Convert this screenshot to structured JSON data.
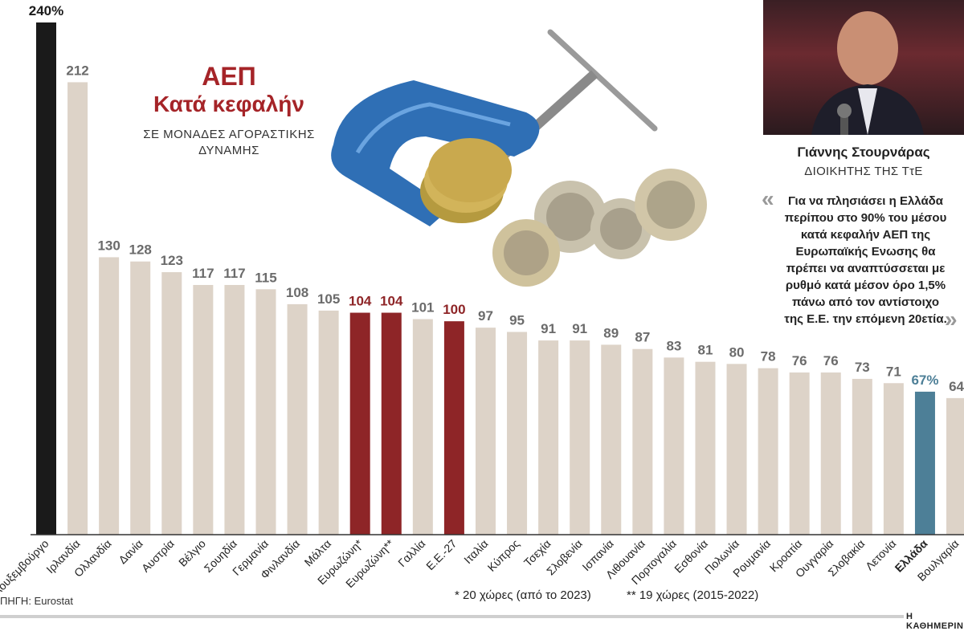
{
  "chart_data": {
    "type": "bar",
    "title": "ΑΕΠ",
    "subtitle": "Κατά κεφαλήν",
    "units": "ΣΕ ΜΟΝΑΔΕΣ ΑΓΟΡΑΣΤΙΚΗΣ ΔΥΝΑΜΗΣ",
    "categories": [
      "Λουξεμβούργο",
      "Ιρλανδία",
      "Ολλανδία",
      "Δανία",
      "Αυστρία",
      "Βέλγιο",
      "Σουηδία",
      "Γερμανία",
      "Φινλανδία",
      "Μάλτα",
      "Ευρωζώνη*",
      "Ευρωζώνη**",
      "Γαλλία",
      "Ε.Ε.-27",
      "Ιταλία",
      "Κύπρος",
      "Τσεχία",
      "Σλοβενία",
      "Ισπανία",
      "Λιθουανία",
      "Πορτογαλία",
      "Εσθονία",
      "Πολωνία",
      "Ρουμανία",
      "Κροατία",
      "Ουγγαρία",
      "Σλοβακία",
      "Λετονία",
      "Ελλάδα",
      "Βουλγαρία"
    ],
    "values": [
      240,
      212,
      130,
      128,
      123,
      117,
      117,
      115,
      108,
      105,
      104,
      104,
      101,
      100,
      97,
      95,
      91,
      91,
      89,
      87,
      83,
      81,
      80,
      78,
      76,
      76,
      73,
      71,
      67,
      64
    ],
    "value_labels": [
      "240%",
      "212",
      "130",
      "128",
      "123",
      "117",
      "117",
      "115",
      "108",
      "105",
      "104",
      "104",
      "101",
      "100",
      "97",
      "95",
      "91",
      "91",
      "89",
      "87",
      "83",
      "81",
      "80",
      "78",
      "76",
      "76",
      "73",
      "71",
      "67%",
      "64"
    ],
    "highlight": {
      "0": "black",
      "10": "red",
      "11": "red",
      "13": "red",
      "28": "blue"
    },
    "colors": {
      "default": "#ddd3c8",
      "black": "#1a1a1a",
      "red": "#8e2527",
      "blue": "#4d7f97",
      "label_default": "#6b6b6b",
      "label_red": "#8e2527",
      "label_blue": "#4d7f97"
    },
    "ylim": [
      0,
      240
    ],
    "grid": false
  },
  "header": {
    "title": "ΑΕΠ",
    "subtitle": "Κατά κεφαλήν",
    "units": "ΣΕ ΜΟΝΑΔΕΣ ΑΓΟΡΑΣΤΙΚΗΣ ΔΥΝΑΜΗΣ"
  },
  "profile": {
    "name": "Γιάννης Στουρνάρας",
    "role": "ΔΙΟΙΚΗΤΗΣ ΤΗΣ ΤτΕ",
    "quote": "Για να πλησιάσει η Ελλάδα περίπου στο 90% του μέσου κατά κεφαλήν ΑΕΠ της Ευρωπαϊκής Ενωσης θα πρέπει να αναπτύσσεται με ρυθμό κατά μέσον όρο 1,5% πάνω από τον αντίστοιχο της Ε.Ε. την επόμενη 20ετία."
  },
  "footer": {
    "source": "ΠΗΓΗ: Eurostat",
    "note1": "* 20 χώρες (από το 2023)",
    "note2": "** 19 χώρες (2015-2022)",
    "brand": "Η ΚΑΘΗΜΕΡΙΝΗ"
  }
}
